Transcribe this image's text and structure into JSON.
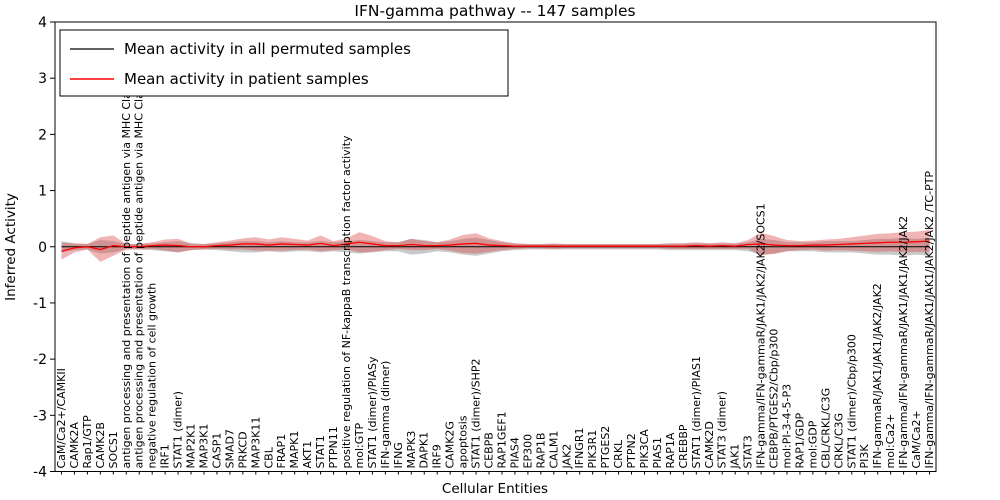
{
  "chart_data": {
    "type": "line",
    "title": "IFN-gamma pathway -- 147 samples",
    "xlabel": "Cellular Entities",
    "ylabel": "Inferred Activity",
    "ylim": [
      -4,
      4
    ],
    "yticks": [
      -4,
      -3,
      -2,
      -1,
      0,
      1,
      2,
      3,
      4
    ],
    "grid": false,
    "legend_position": "upper left",
    "categories": [
      "CaM/Ca2+/CAMKII",
      "CAMK2A",
      "Rap1/GTP",
      "CAMK2B",
      "SOCS1",
      "antigen processing and presentation of peptide antigen via MHC Class I",
      "antigen processing and presentation of peptide antigen via MHC Class II",
      "negative regulation of cell growth",
      "IRF1",
      "STAT1 (dimer)",
      "MAP2K1",
      "MAP3K1",
      "CASP1",
      "SMAD7",
      "PRKCD",
      "MAP3K11",
      "CBL",
      "FRAP1",
      "MAPK1",
      "AKT1",
      "STAT1",
      "PTPN11",
      "positive regulation of NF-kappaB transcription factor activity",
      "mol:GTP",
      "STAT1 (dimer)/PIASy",
      "IFN-gamma (dimer)",
      "IFNG",
      "MAPK3",
      "DAPK1",
      "IRF9",
      "CAMK2G",
      "apoptosis",
      "STAT1 (dimer)/SHP2",
      "CEBPB",
      "RAP1GEF1",
      "PIAS4",
      "EP300",
      "RAP1B",
      "CALM1",
      "JAK2",
      "IFNGR1",
      "PIK3R1",
      "PTGES2",
      "CRKL",
      "PTPN2",
      "PIK3CA",
      "PIAS1",
      "RAP1A",
      "CREBBP",
      "STAT1 (dimer)/PIAS1",
      "CAMK2D",
      "STAT3 (dimer)",
      "JAK1",
      "STAT3",
      "IFN-gamma/IFN-gammaR/JAK1/JAK2/JAK2/SOCS1",
      "CEBPB/PTGES2/Cbp/p300",
      "mol:PI-3-4-5-P3",
      "RAP1/GDP",
      "mol:GDP",
      "CBL/CRKL/C3G",
      "CRKL/C3G",
      "STAT1 (dimer)/Cbp/p300",
      "PI3K",
      "IFN-gammaR/JAK1/JAK1/JAK2/JAK2",
      "mol:Ca2+",
      "IFN-gamma/IFN-gammaR/JAK1/JAK1/JAK2/JAK2",
      "CaM/Ca2+",
      "IFN-gamma/IFN-gammaR/JAK1/JAK1/JAK2/JAK2 /TC-PTP"
    ],
    "series": [
      {
        "name": "Mean activity in all permuted samples",
        "color": "#000000",
        "band_color": "#888888",
        "band_opacity": 0.45,
        "values": [
          0,
          0,
          0,
          0,
          0,
          0,
          0,
          0,
          0,
          0,
          0,
          0,
          0,
          0,
          0,
          0,
          0,
          0,
          0,
          0,
          0,
          0,
          0,
          0,
          0,
          0,
          0,
          0,
          0,
          0,
          0,
          0,
          0,
          0,
          0,
          0,
          0,
          0,
          0,
          0,
          0,
          0,
          0,
          0,
          0,
          0,
          0,
          0,
          0,
          0,
          0,
          0,
          0,
          0,
          0,
          0,
          0,
          0,
          0,
          0,
          0,
          0,
          0,
          0,
          0,
          0,
          0,
          0
        ],
        "band": [
          0.1,
          0.06,
          0.05,
          0.12,
          0.1,
          0.05,
          0.05,
          0.06,
          0.08,
          0.1,
          0.06,
          0.05,
          0.06,
          0.08,
          0.1,
          0.1,
          0.08,
          0.1,
          0.08,
          0.08,
          0.1,
          0.08,
          0.1,
          0.12,
          0.1,
          0.08,
          0.08,
          0.14,
          0.12,
          0.08,
          0.1,
          0.14,
          0.16,
          0.12,
          0.08,
          0.06,
          0.05,
          0.05,
          0.05,
          0.05,
          0.05,
          0.05,
          0.05,
          0.05,
          0.05,
          0.05,
          0.05,
          0.06,
          0.06,
          0.06,
          0.06,
          0.06,
          0.06,
          0.08,
          0.14,
          0.12,
          0.08,
          0.08,
          0.08,
          0.1,
          0.1,
          0.1,
          0.12,
          0.14,
          0.14,
          0.16,
          0.14,
          0.16
        ]
      },
      {
        "name": "Mean activity in patient samples",
        "color": "#ff0000",
        "band_color": "#dd4444",
        "band_opacity": 0.4,
        "values": [
          -0.08,
          -0.02,
          0.0,
          -0.05,
          0.02,
          0.0,
          0.0,
          0.02,
          0.03,
          0.02,
          0.0,
          0.0,
          0.02,
          0.03,
          0.05,
          0.05,
          0.03,
          0.05,
          0.04,
          0.03,
          0.06,
          0.02,
          0.05,
          0.08,
          0.05,
          0.02,
          0.02,
          0.04,
          0.02,
          0.02,
          0.03,
          0.05,
          0.06,
          0.03,
          0.02,
          0.01,
          0.01,
          0.01,
          0.01,
          0.01,
          0.01,
          0.01,
          0.01,
          0.01,
          0.01,
          0.01,
          0.01,
          0.01,
          0.01,
          0.02,
          0.01,
          0.02,
          0.01,
          0.04,
          0.05,
          0.03,
          0.02,
          0.02,
          0.03,
          0.03,
          0.04,
          0.05,
          0.06,
          0.07,
          0.08,
          0.08,
          0.09,
          0.1
        ],
        "band": [
          0.15,
          0.08,
          0.05,
          0.22,
          0.18,
          0.05,
          0.05,
          0.06,
          0.1,
          0.12,
          0.06,
          0.05,
          0.06,
          0.08,
          0.1,
          0.12,
          0.1,
          0.12,
          0.1,
          0.08,
          0.14,
          0.08,
          0.1,
          0.18,
          0.14,
          0.08,
          0.06,
          0.1,
          0.08,
          0.06,
          0.1,
          0.16,
          0.18,
          0.12,
          0.08,
          0.05,
          0.04,
          0.04,
          0.05,
          0.04,
          0.04,
          0.04,
          0.04,
          0.04,
          0.04,
          0.04,
          0.04,
          0.05,
          0.05,
          0.06,
          0.05,
          0.06,
          0.05,
          0.08,
          0.2,
          0.16,
          0.1,
          0.08,
          0.08,
          0.1,
          0.1,
          0.12,
          0.14,
          0.16,
          0.16,
          0.18,
          0.18,
          0.2
        ]
      }
    ]
  }
}
